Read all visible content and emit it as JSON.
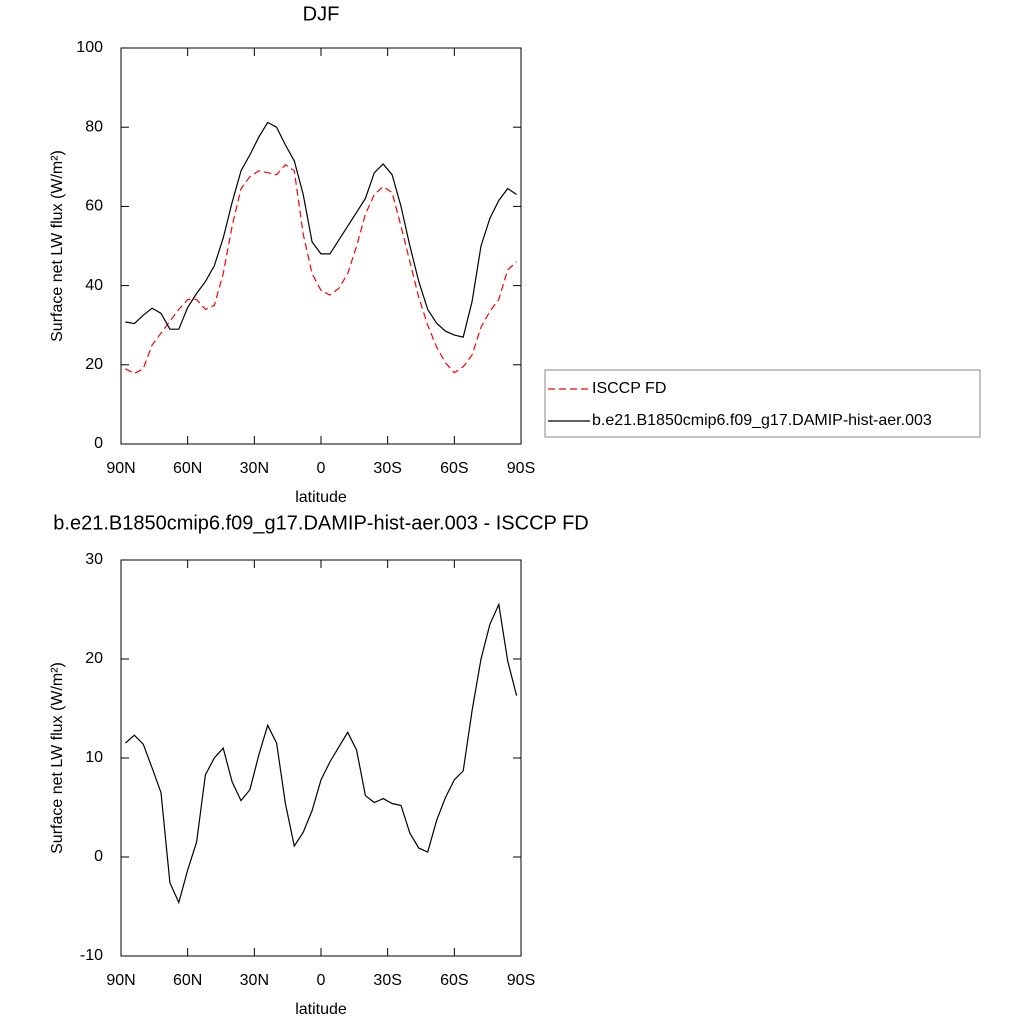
{
  "chart_data": [
    {
      "type": "line",
      "title": "DJF",
      "xlabel": "latitude",
      "ylabel": "Surface net LW flux (W/m²)",
      "x": [
        88,
        84,
        80,
        76,
        72,
        68,
        64,
        60,
        56,
        52,
        48,
        44,
        40,
        36,
        32,
        28,
        24,
        20,
        16,
        12,
        8,
        4,
        0,
        -4,
        -8,
        -12,
        -16,
        -20,
        -24,
        -28,
        -32,
        -36,
        -40,
        -44,
        -48,
        -52,
        -56,
        -60,
        -64,
        -68,
        -72,
        -76,
        -80,
        -84,
        -88
      ],
      "series": [
        {
          "name": "ISCCP FD",
          "color": "#ff0000",
          "line_style": "dashed",
          "values": [
            19,
            17.8,
            19,
            25,
            28,
            31,
            34,
            36.5,
            36.5,
            34,
            35,
            43,
            55,
            64.5,
            67.5,
            69,
            68.5,
            68,
            70.5,
            69,
            53,
            43,
            38.8,
            37.6,
            39.3,
            43,
            50,
            58,
            63,
            65,
            63.5,
            55,
            46,
            37,
            30,
            24.5,
            20.5,
            18,
            19.5,
            22.5,
            29.5,
            33.5,
            36.5,
            44,
            46
          ]
        },
        {
          "name": "b.e21.B1850cmip6.f09_g17.DAMIP-hist-aer.003",
          "color": "#000000",
          "line_style": "solid",
          "values": [
            30.8,
            30.4,
            32.5,
            34.3,
            33,
            29,
            29,
            34.5,
            38,
            41,
            45,
            52,
            61,
            69,
            73,
            77.5,
            81.2,
            80,
            75.5,
            71.5,
            63,
            51,
            48,
            48,
            51.5,
            55,
            58.5,
            62,
            68.5,
            70.7,
            68,
            60,
            50,
            41,
            34,
            30.5,
            28.5,
            27.5,
            27,
            36,
            50,
            57,
            61.5,
            64.5,
            63
          ]
        }
      ],
      "xlim": [
        90,
        -90
      ],
      "xticks": [
        {
          "value": 90,
          "label": "90N"
        },
        {
          "value": 60,
          "label": "60N"
        },
        {
          "value": 30,
          "label": "30N"
        },
        0,
        {
          "value": -30,
          "label": "30S"
        },
        {
          "value": -60,
          "label": "60S"
        },
        {
          "value": -90,
          "label": "90S"
        }
      ],
      "ylim": [
        0,
        100
      ],
      "yticks": [
        0,
        20,
        40,
        60,
        80,
        100
      ],
      "legend": "right"
    },
    {
      "type": "line",
      "title": "b.e21.B1850cmip6.f09_g17.DAMIP-hist-aer.003 - ISCCP FD",
      "xlabel": "latitude",
      "ylabel": "Surface net LW flux (W/m²)",
      "x": [
        88,
        84,
        80,
        76,
        72,
        68,
        64,
        60,
        56,
        52,
        48,
        44,
        40,
        36,
        32,
        28,
        24,
        20,
        16,
        12,
        8,
        4,
        0,
        -4,
        -8,
        -12,
        -16,
        -20,
        -24,
        -28,
        -32,
        -36,
        -40,
        -44,
        -48,
        -52,
        -56,
        -60,
        -64,
        -68,
        -72,
        -76,
        -80,
        -84,
        -88
      ],
      "values": [
        11.5,
        12.3,
        11.4,
        9,
        6.5,
        -2.6,
        -4.6,
        -1.3,
        1.5,
        8.3,
        10,
        11,
        7.6,
        5.7,
        6.8,
        10.3,
        13.3,
        11.5,
        5.4,
        1.1,
        2.5,
        4.7,
        7.8,
        9.6,
        11.1,
        12.6,
        10.8,
        6.2,
        5.5,
        5.9,
        5.4,
        5.2,
        2.4,
        0.9,
        0.5,
        3.7,
        6,
        7.8,
        8.7,
        14.8,
        20,
        23.5,
        25.5,
        19.8,
        16.3
      ],
      "color": "#000000",
      "xlim": [
        90,
        -90
      ],
      "xticks": [
        {
          "value": 90,
          "label": "90N"
        },
        {
          "value": 60,
          "label": "60N"
        },
        {
          "value": 30,
          "label": "30N"
        },
        0,
        {
          "value": -30,
          "label": "30S"
        },
        {
          "value": -60,
          "label": "60S"
        },
        {
          "value": -90,
          "label": "90S"
        }
      ],
      "ylim": [
        -10,
        30
      ],
      "yticks": [
        -10,
        0,
        10,
        20,
        30
      ]
    }
  ]
}
